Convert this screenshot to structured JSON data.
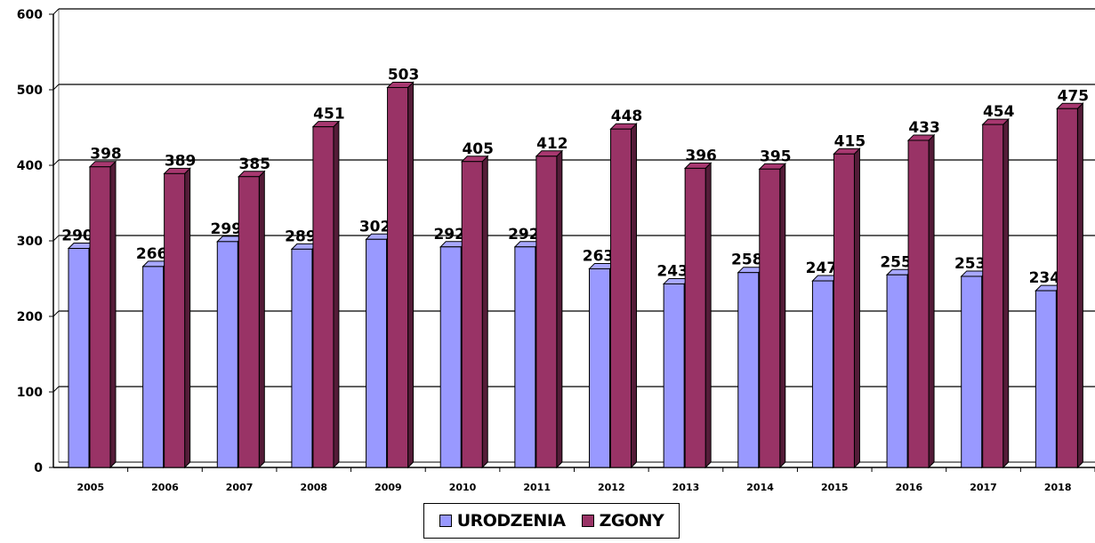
{
  "chart_data": {
    "type": "bar",
    "categories": [
      "2005",
      "2006",
      "2007",
      "2008",
      "2009",
      "2010",
      "2011",
      "2012",
      "2013",
      "2014",
      "2015",
      "2016",
      "2017",
      "2018"
    ],
    "series": [
      {
        "name": "URODZENIA",
        "color": "#9999ff",
        "values": [
          290,
          266,
          299,
          289,
          302,
          292,
          292,
          263,
          243,
          258,
          247,
          255,
          253,
          234
        ]
      },
      {
        "name": "ZGONY",
        "color": "#993366",
        "values": [
          398,
          389,
          385,
          451,
          503,
          405,
          412,
          448,
          396,
          395,
          415,
          433,
          454,
          475
        ]
      }
    ],
    "yticks": [
      "0",
      "100",
      "200",
      "300",
      "400",
      "500",
      "600"
    ],
    "ylim": [
      0,
      600
    ],
    "grid": true,
    "legend_position": "bottom",
    "style": "3d-columns"
  }
}
